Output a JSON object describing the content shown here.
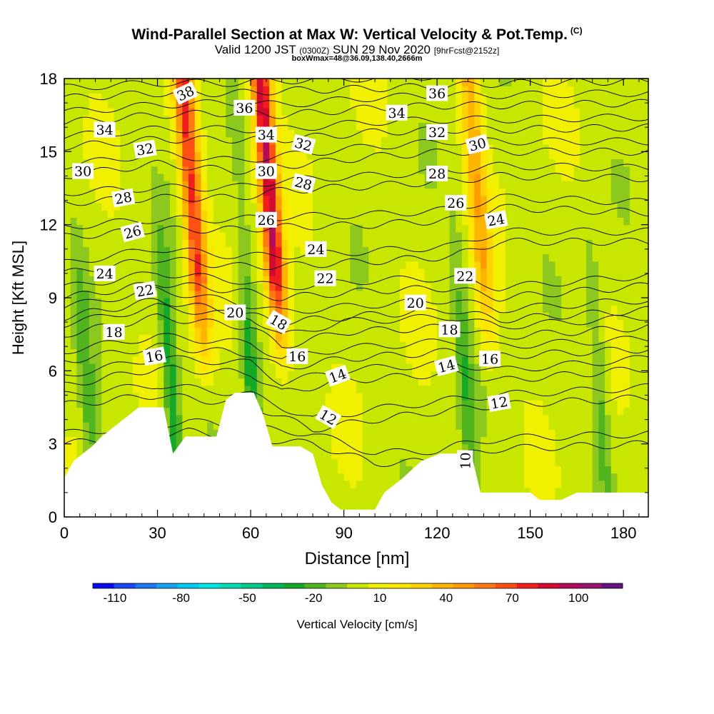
{
  "header": {
    "title": "Wind-Parallel Section at Max W: Vertical Velocity & Pot.Temp.",
    "copyright": "(C)",
    "valid_prefix": "Valid 1200 JST",
    "valid_utc": "(0300Z)",
    "valid_date": "SUN 29 Nov 2020",
    "forecast": "[9hrFcst@2152z]",
    "box_info": "boxWmax=48@36.09,138.40,2666m"
  },
  "chart_data": {
    "type": "heatmap",
    "xlabel": "Distance [nm]",
    "ylabel": "Height [Kft MSL]",
    "xlim": [
      0,
      188
    ],
    "ylim": [
      0,
      18
    ],
    "x_ticks": [
      0,
      30,
      60,
      90,
      120,
      150,
      180
    ],
    "y_ticks": [
      0,
      3,
      6,
      9,
      12,
      15,
      18
    ],
    "colorbar": {
      "label": "Vertical Velocity [cm/s]",
      "tick_labels": [
        -110,
        -80,
        -50,
        -20,
        10,
        40,
        70,
        100
      ],
      "levels": [
        -120,
        -110,
        -100,
        -90,
        -80,
        -70,
        -60,
        -50,
        -40,
        -30,
        -20,
        -10,
        0,
        10,
        20,
        30,
        40,
        50,
        60,
        70,
        80,
        90,
        100,
        110,
        120
      ],
      "colors": [
        "#0a0af0",
        "#1e46f5",
        "#1e78f5",
        "#14a0f0",
        "#00c8f0",
        "#00e6e6",
        "#00dcb4",
        "#00c88c",
        "#00b45a",
        "#14aa28",
        "#50b41e",
        "#8cc81e",
        "#c8e600",
        "#f0f000",
        "#ffe600",
        "#ffd200",
        "#ffb400",
        "#ff9b00",
        "#ff7814",
        "#ff5014",
        "#f01e1e",
        "#d20a32",
        "#b40a5a",
        "#96146e",
        "#641482"
      ]
    },
    "terrain_kft": [
      [
        0,
        1.6
      ],
      [
        3,
        2.3
      ],
      [
        6,
        2.6
      ],
      [
        9,
        2.9
      ],
      [
        12,
        3.3
      ],
      [
        15,
        3.6
      ],
      [
        18,
        3.9
      ],
      [
        21,
        4.2
      ],
      [
        24,
        4.5
      ],
      [
        32,
        4.5
      ],
      [
        35,
        2.6
      ],
      [
        39,
        3.3
      ],
      [
        49,
        3.3
      ],
      [
        52,
        4.8
      ],
      [
        55,
        5.1
      ],
      [
        61,
        5.1
      ],
      [
        64,
        4.2
      ],
      [
        67,
        2.9
      ],
      [
        76,
        2.9
      ],
      [
        80,
        2.6
      ],
      [
        83,
        1.3
      ],
      [
        86,
        0.6
      ],
      [
        89,
        0.3
      ],
      [
        100,
        0.3
      ],
      [
        103,
        1.0
      ],
      [
        109,
        1.6
      ],
      [
        115,
        2.3
      ],
      [
        121,
        2.6
      ],
      [
        131,
        2.6
      ],
      [
        134,
        1.0
      ],
      [
        140,
        1.0
      ],
      [
        150,
        1.0
      ],
      [
        153,
        0.7
      ],
      [
        160,
        0.7
      ],
      [
        165,
        1.0
      ],
      [
        188,
        1.0
      ]
    ],
    "updraft_cores": [
      {
        "x": 43,
        "peak": 75
      },
      {
        "x": 68,
        "peak": 95
      },
      {
        "x": 135,
        "peak": 40
      }
    ],
    "downdraft_cores": [
      {
        "x": 32,
        "peak": -35
      },
      {
        "x": 58,
        "peak": -35
      },
      {
        "x": 5,
        "peak": -22
      },
      {
        "x": 127,
        "peak": -22
      },
      {
        "x": 170,
        "peak": -20
      }
    ],
    "theta_contours": {
      "series": [
        {
          "name": "10",
          "heights": [
            [
              0,
              3.0
            ],
            [
              40,
              3.5
            ],
            [
              80,
              3.0
            ],
            [
              100,
              2.2
            ],
            [
              120,
              2.3
            ],
            [
              126,
              2.5
            ],
            [
              140,
              2.8
            ],
            [
              188,
              3.0
            ]
          ]
        },
        {
          "name": "12",
          "heights": [
            [
              0,
              4.6
            ],
            [
              30,
              5.0
            ],
            [
              60,
              4.6
            ],
            [
              80,
              3.6
            ],
            [
              100,
              4.0
            ],
            [
              125,
              4.4
            ],
            [
              140,
              4.6
            ],
            [
              188,
              4.9
            ]
          ]
        },
        {
          "name": "14",
          "heights": [
            [
              0,
              5.4
            ],
            [
              30,
              6.1
            ],
            [
              60,
              5.9
            ],
            [
              70,
              5.1
            ],
            [
              90,
              5.6
            ],
            [
              125,
              5.9
            ],
            [
              140,
              5.6
            ],
            [
              188,
              6.1
            ]
          ]
        },
        {
          "name": "16",
          "heights": [
            [
              0,
              6.4
            ],
            [
              30,
              7.0
            ],
            [
              60,
              6.7
            ],
            [
              70,
              6.1
            ],
            [
              90,
              6.5
            ],
            [
              125,
              6.8
            ],
            [
              140,
              6.6
            ],
            [
              188,
              6.9
            ]
          ]
        },
        {
          "name": "18",
          "heights": [
            [
              0,
              7.5
            ],
            [
              30,
              8.2
            ],
            [
              60,
              7.8
            ],
            [
              70,
              7.0
            ],
            [
              90,
              7.6
            ],
            [
              125,
              7.8
            ],
            [
              140,
              7.4
            ],
            [
              188,
              7.8
            ]
          ]
        },
        {
          "name": "20",
          "heights": [
            [
              0,
              8.2
            ],
            [
              30,
              8.9
            ],
            [
              55,
              8.4
            ],
            [
              70,
              8.0
            ],
            [
              100,
              8.3
            ],
            [
              125,
              8.5
            ],
            [
              140,
              8.1
            ],
            [
              188,
              8.5
            ]
          ]
        },
        {
          "name": "22",
          "heights": [
            [
              0,
              9.0
            ],
            [
              30,
              9.6
            ],
            [
              55,
              9.3
            ],
            [
              70,
              9.0
            ],
            [
              100,
              9.3
            ],
            [
              125,
              9.4
            ],
            [
              140,
              9.0
            ],
            [
              188,
              9.5
            ]
          ]
        },
        {
          "name": "24",
          "heights": [
            [
              0,
              10.0
            ],
            [
              30,
              10.6
            ],
            [
              55,
              10.3
            ],
            [
              70,
              10.3
            ],
            [
              100,
              10.5
            ],
            [
              125,
              10.7
            ],
            [
              140,
              11.3
            ],
            [
              188,
              11.3
            ]
          ]
        },
        {
          "name": "26",
          "heights": [
            [
              0,
              11.5
            ],
            [
              30,
              11.8
            ],
            [
              55,
              11.8
            ],
            [
              70,
              11.9
            ],
            [
              100,
              12.0
            ],
            [
              125,
              12.2
            ],
            [
              140,
              12.7
            ],
            [
              188,
              12.5
            ]
          ]
        },
        {
          "name": "28",
          "heights": [
            [
              0,
              12.9
            ],
            [
              30,
              13.1
            ],
            [
              55,
              13.1
            ],
            [
              70,
              13.4
            ],
            [
              100,
              13.6
            ],
            [
              125,
              13.8
            ],
            [
              140,
              14.0
            ],
            [
              188,
              13.9
            ]
          ]
        },
        {
          "name": "30",
          "heights": [
            [
              0,
              14.0
            ],
            [
              30,
              14.5
            ],
            [
              55,
              14.2
            ],
            [
              70,
              14.4
            ],
            [
              100,
              14.8
            ],
            [
              125,
              15.0
            ],
            [
              140,
              15.0
            ],
            [
              188,
              15.0
            ]
          ]
        },
        {
          "name": "32",
          "heights": [
            [
              0,
              15.2
            ],
            [
              30,
              15.5
            ],
            [
              55,
              15.5
            ],
            [
              70,
              15.5
            ],
            [
              100,
              15.8
            ],
            [
              125,
              15.9
            ],
            [
              140,
              15.9
            ],
            [
              188,
              16.0
            ]
          ]
        },
        {
          "name": "34",
          "heights": [
            [
              0,
              16.2
            ],
            [
              30,
              16.5
            ],
            [
              55,
              16.6
            ],
            [
              70,
              16.5
            ],
            [
              100,
              16.8
            ],
            [
              125,
              16.9
            ],
            [
              140,
              16.9
            ],
            [
              188,
              17.0
            ]
          ]
        },
        {
          "name": "36",
          "heights": [
            [
              0,
              17.2
            ],
            [
              30,
              17.4
            ],
            [
              55,
              17.4
            ],
            [
              70,
              17.5
            ],
            [
              100,
              17.6
            ],
            [
              125,
              17.7
            ],
            [
              140,
              17.8
            ],
            [
              188,
              17.9
            ]
          ]
        }
      ]
    },
    "contour_labels": [
      {
        "text": "38",
        "x": 39,
        "y": 17.4,
        "angle": -25
      },
      {
        "text": "36",
        "x": 58,
        "y": 16.8,
        "angle": 0
      },
      {
        "text": "36",
        "x": 120,
        "y": 17.4,
        "angle": 0
      },
      {
        "text": "34",
        "x": 13,
        "y": 15.9,
        "angle": 0
      },
      {
        "text": "34",
        "x": 65,
        "y": 15.7,
        "angle": 0
      },
      {
        "text": "34",
        "x": 107,
        "y": 16.6,
        "angle": 0
      },
      {
        "text": "32",
        "x": 26,
        "y": 15.1,
        "angle": -10
      },
      {
        "text": "32",
        "x": 77,
        "y": 15.3,
        "angle": 15
      },
      {
        "text": "32",
        "x": 120,
        "y": 15.8,
        "angle": 0
      },
      {
        "text": "30",
        "x": 6,
        "y": 14.2,
        "angle": 0
      },
      {
        "text": "30",
        "x": 65,
        "y": 14.2,
        "angle": 0
      },
      {
        "text": "30",
        "x": 133,
        "y": 15.3,
        "angle": -15
      },
      {
        "text": "28",
        "x": 19,
        "y": 13.1,
        "angle": -10
      },
      {
        "text": "28",
        "x": 77,
        "y": 13.7,
        "angle": 15
      },
      {
        "text": "28",
        "x": 120,
        "y": 14.1,
        "angle": 0
      },
      {
        "text": "26",
        "x": 22,
        "y": 11.7,
        "angle": -15
      },
      {
        "text": "26",
        "x": 65,
        "y": 12.2,
        "angle": 0
      },
      {
        "text": "26",
        "x": 126,
        "y": 12.9,
        "angle": 0
      },
      {
        "text": "24",
        "x": 13,
        "y": 10.0,
        "angle": 0
      },
      {
        "text": "24",
        "x": 81,
        "y": 11.0,
        "angle": 0
      },
      {
        "text": "24",
        "x": 139,
        "y": 12.2,
        "angle": -10
      },
      {
        "text": "22",
        "x": 26,
        "y": 9.3,
        "angle": -10
      },
      {
        "text": "22",
        "x": 84,
        "y": 9.8,
        "angle": 0
      },
      {
        "text": "22",
        "x": 129,
        "y": 9.9,
        "angle": 0
      },
      {
        "text": "20",
        "x": 55,
        "y": 8.4,
        "angle": 0
      },
      {
        "text": "20",
        "x": 113,
        "y": 8.8,
        "angle": 0
      },
      {
        "text": "18",
        "x": 16,
        "y": 7.6,
        "angle": 0
      },
      {
        "text": "18",
        "x": 69,
        "y": 8.0,
        "angle": 30
      },
      {
        "text": "18",
        "x": 124,
        "y": 7.7,
        "angle": 0
      },
      {
        "text": "16",
        "x": 29,
        "y": 6.6,
        "angle": -10
      },
      {
        "text": "16",
        "x": 75,
        "y": 6.6,
        "angle": 0
      },
      {
        "text": "16",
        "x": 137,
        "y": 6.5,
        "angle": 0
      },
      {
        "text": "14",
        "x": 88,
        "y": 5.8,
        "angle": -20
      },
      {
        "text": "14",
        "x": 123,
        "y": 6.2,
        "angle": -15
      },
      {
        "text": "12",
        "x": 85,
        "y": 4.1,
        "angle": 30
      },
      {
        "text": "12",
        "x": 140,
        "y": 4.7,
        "angle": -10
      },
      {
        "text": "10",
        "x": 129,
        "y": 2.3,
        "angle": -90
      }
    ]
  }
}
